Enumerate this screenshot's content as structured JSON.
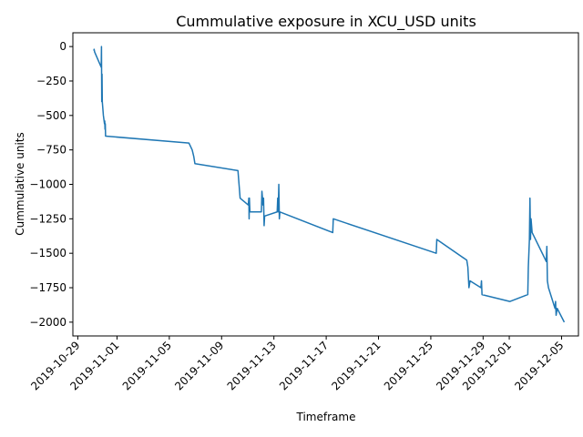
{
  "chart_data": {
    "type": "line",
    "title": "Cummulative exposure in XCU_USD units",
    "xlabel": "Timeframe",
    "ylabel": "Cummulative units",
    "xlim": [
      "2019-10-28T15:00",
      "2019-12-06T07:00"
    ],
    "ylim": [
      -2100,
      100
    ],
    "grid": false,
    "legend": "none",
    "yticks": [
      0,
      -250,
      -500,
      -750,
      -1000,
      -1250,
      -1500,
      -1750,
      -2000
    ],
    "ytick_labels": [
      "0",
      "−250",
      "−500",
      "−750",
      "−1000",
      "−1250",
      "−1500",
      "−1750",
      "−2000"
    ],
    "xticks": [
      "2019-10-29",
      "2019-11-01",
      "2019-11-05",
      "2019-11-09",
      "2019-11-13",
      "2019-11-17",
      "2019-11-21",
      "2019-11-25",
      "2019-11-29",
      "2019-12-01",
      "2019-12-05"
    ],
    "color": "#1f77b4",
    "series": [
      {
        "points": [
          [
            "2019-10-30T05:30",
            -30
          ],
          [
            "2019-10-30T06:00",
            -20
          ],
          [
            "2019-10-30T07:00",
            -40
          ],
          [
            "2019-10-30T19:00",
            -150
          ],
          [
            "2019-10-30T19:30",
            0
          ],
          [
            "2019-10-30T20:00",
            -400
          ],
          [
            "2019-10-30T20:30",
            -200
          ],
          [
            "2019-10-30T21:00",
            -400
          ],
          [
            "2019-10-30T23:00",
            -500
          ],
          [
            "2019-10-31T01:00",
            -560
          ],
          [
            "2019-10-31T01:30",
            -540
          ],
          [
            "2019-10-31T02:00",
            -600
          ],
          [
            "2019-10-31T02:30",
            -560
          ],
          [
            "2019-10-31T03:00",
            -650
          ],
          [
            "2019-11-06T12:00",
            -700
          ],
          [
            "2019-11-06T18:00",
            -750
          ],
          [
            "2019-11-06T21:00",
            -800
          ],
          [
            "2019-11-06T23:00",
            -850
          ],
          [
            "2019-11-10T06:00",
            -900
          ],
          [
            "2019-11-10T08:00",
            -1000
          ],
          [
            "2019-11-10T10:00",
            -1100
          ],
          [
            "2019-11-11T01:00",
            -1150
          ],
          [
            "2019-11-11T02:00",
            -1100
          ],
          [
            "2019-11-11T02:30",
            -1250
          ],
          [
            "2019-11-11T03:00",
            -1100
          ],
          [
            "2019-11-11T04:00",
            -1200
          ],
          [
            "2019-11-12T01:00",
            -1200
          ],
          [
            "2019-11-12T02:00",
            -1050
          ],
          [
            "2019-11-12T04:00",
            -1150
          ],
          [
            "2019-11-12T05:00",
            -1100
          ],
          [
            "2019-11-12T06:00",
            -1300
          ],
          [
            "2019-11-12T07:00",
            -1230
          ],
          [
            "2019-11-13T06:00",
            -1200
          ],
          [
            "2019-11-13T07:00",
            -1100
          ],
          [
            "2019-11-13T08:00",
            -1200
          ],
          [
            "2019-11-13T09:00",
            -1000
          ],
          [
            "2019-11-13T10:00",
            -1250
          ],
          [
            "2019-11-13T11:00",
            -1200
          ],
          [
            "2019-11-17T12:00",
            -1350
          ],
          [
            "2019-11-17T13:00",
            -1250
          ],
          [
            "2019-11-25T10:00",
            -1500
          ],
          [
            "2019-11-25T11:00",
            -1400
          ],
          [
            "2019-11-27T18:00",
            -1550
          ],
          [
            "2019-11-27T20:00",
            -1600
          ],
          [
            "2019-11-27T22:00",
            -1750
          ],
          [
            "2019-11-28T00:00",
            -1700
          ],
          [
            "2019-11-28T20:00",
            -1750
          ],
          [
            "2019-11-28T21:00",
            -1700
          ],
          [
            "2019-11-28T22:00",
            -1800
          ],
          [
            "2019-12-01T01:00",
            -1850
          ],
          [
            "2019-12-02T10:00",
            -1800
          ],
          [
            "2019-12-02T11:00",
            -1600
          ],
          [
            "2019-12-02T12:00",
            -1500
          ],
          [
            "2019-12-02T13:00",
            -1400
          ],
          [
            "2019-12-02T14:00",
            -1100
          ],
          [
            "2019-12-02T15:00",
            -1400
          ],
          [
            "2019-12-02T16:00",
            -1250
          ],
          [
            "2019-12-02T18:00",
            -1350
          ],
          [
            "2019-12-03T20:00",
            -1560
          ],
          [
            "2019-12-03T21:00",
            -1450
          ],
          [
            "2019-12-03T22:00",
            -1700
          ],
          [
            "2019-12-04T00:00",
            -1750
          ],
          [
            "2019-12-04T12:00",
            -1900
          ],
          [
            "2019-12-04T13:00",
            -1850
          ],
          [
            "2019-12-04T14:00",
            -1950
          ],
          [
            "2019-12-04T16:00",
            -1900
          ],
          [
            "2019-12-05T05:00",
            -2000
          ]
        ]
      }
    ]
  }
}
